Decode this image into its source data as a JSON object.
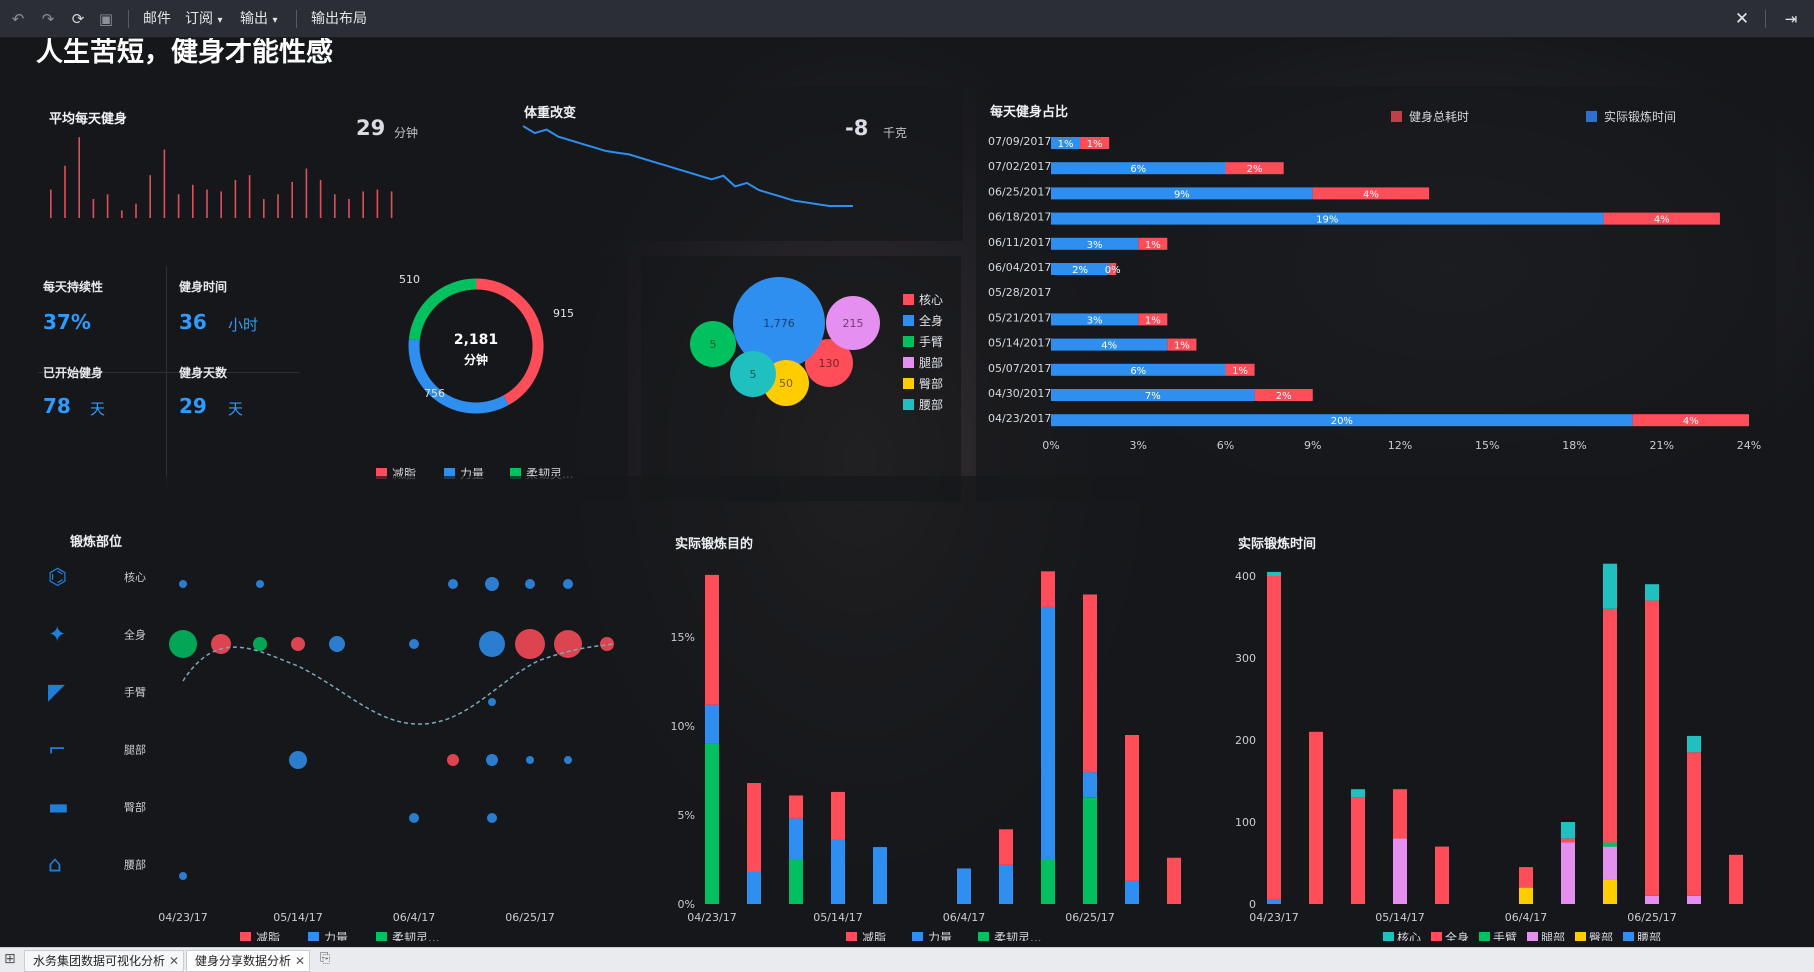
{
  "toolbar": {
    "mail": "邮件",
    "subscribe": "订阅",
    "export": "输出",
    "export_layout": "输出布局"
  },
  "title": "人生苦短，健身才能性感",
  "avg_daily": {
    "title": "平均每天健身",
    "value": "29",
    "unit": "分钟",
    "bars": [
      30,
      55,
      85,
      20,
      25,
      8,
      15,
      45,
      72,
      25,
      35,
      30,
      28,
      40,
      45,
      20,
      25,
      38,
      52,
      40,
      25,
      20,
      28,
      30,
      28
    ]
  },
  "weight": {
    "title": "体重改变",
    "value": "-8",
    "unit": "千克",
    "series": [
      100,
      96,
      98,
      94,
      92,
      90,
      88,
      86,
      85,
      84,
      82,
      80,
      78,
      76,
      74,
      72,
      70,
      72,
      66,
      68,
      64,
      62,
      60,
      58,
      57,
      56,
      55,
      55,
      55
    ]
  },
  "kpi": {
    "consistency_label": "每天持续性",
    "consistency_value": "37%",
    "time_label": "健身时间",
    "time_value": "36",
    "time_unit": "小时",
    "started_label": "已开始健身",
    "started_value": "78",
    "started_unit": "天",
    "days_label": "健身天数",
    "days_value": "29",
    "days_unit": "天"
  },
  "donut": {
    "total": "2,181",
    "unit": "分钟",
    "slices": [
      {
        "label": "915",
        "name": "减脂",
        "value": 915,
        "color": "#ff4d5a"
      },
      {
        "label": "756",
        "name": "力量",
        "value": 756,
        "color": "#2e8ff0"
      },
      {
        "label": "510",
        "name": "柔韧灵...",
        "value": 510,
        "color": "#00c060"
      }
    ]
  },
  "bubbles": {
    "items": [
      {
        "name": "核心",
        "value": 130,
        "label": "130",
        "color": "#ff4d5a"
      },
      {
        "name": "全身",
        "value": 1776,
        "label": "1,776",
        "color": "#2e8ff0"
      },
      {
        "name": "手臂",
        "value": 5,
        "label": "5",
        "color": "#00c060"
      },
      {
        "name": "腿部",
        "value": 215,
        "label": "215",
        "color": "#e58ff0"
      },
      {
        "name": "臀部",
        "value": 50,
        "label": "50",
        "color": "#ffcc00"
      },
      {
        "name": "腰部",
        "value": 5,
        "label": "5",
        "color": "#20c0c0"
      }
    ]
  },
  "daily_ratio": {
    "title": "每天健身占比",
    "legend": [
      {
        "name": "健身总耗时",
        "color": "#c0404a"
      },
      {
        "name": "实际锻炼时间",
        "color": "#2e6fd0"
      }
    ],
    "rows": [
      {
        "date": "07/09/2017",
        "blue": 1,
        "red": 1
      },
      {
        "date": "07/02/2017",
        "blue": 6,
        "red": 2
      },
      {
        "date": "06/25/2017",
        "blue": 9,
        "red": 4
      },
      {
        "date": "06/18/2017",
        "blue": 19,
        "red": 4
      },
      {
        "date": "06/11/2017",
        "blue": 3,
        "red": 1
      },
      {
        "date": "06/04/2017",
        "blue": 2,
        "red": 0
      },
      {
        "date": "05/28/2017",
        "blue": 0,
        "red": 0
      },
      {
        "date": "05/21/2017",
        "blue": 3,
        "red": 1
      },
      {
        "date": "05/14/2017",
        "blue": 4,
        "red": 1
      },
      {
        "date": "05/07/2017",
        "blue": 6,
        "red": 1
      },
      {
        "date": "04/30/2017",
        "blue": 7,
        "red": 2
      },
      {
        "date": "04/23/2017",
        "blue": 20,
        "red": 4
      }
    ],
    "ticks": [
      "0%",
      "3%",
      "6%",
      "9%",
      "12%",
      "15%",
      "18%",
      "21%",
      "24%"
    ]
  },
  "body_parts": {
    "title": "锻炼部位",
    "rows": [
      "核心",
      "全身",
      "手臂",
      "腿部",
      "臀部",
      "腰部"
    ],
    "xticks": [
      "04/23/17",
      "05/14/17",
      "06/4/17",
      "06/25/17"
    ],
    "legend": [
      {
        "name": "减脂",
        "color": "#ff4d5a"
      },
      {
        "name": "力量",
        "color": "#2e8ff0"
      },
      {
        "name": "柔韧灵...",
        "color": "#00c060"
      }
    ]
  },
  "purpose": {
    "title": "实际锻炼目的",
    "yticks": [
      "0%",
      "5%",
      "10%",
      "15%"
    ],
    "xticks": [
      "04/23/17",
      "05/14/17",
      "06/4/17",
      "06/25/17"
    ],
    "legend": [
      {
        "name": "减脂",
        "color": "#ff4d5a"
      },
      {
        "name": "力量",
        "color": "#2e8ff0"
      },
      {
        "name": "柔韧灵...",
        "color": "#00c060"
      }
    ]
  },
  "actual_time": {
    "title": "实际锻炼时间",
    "yticks": [
      "0",
      "100",
      "200",
      "300",
      "400"
    ],
    "xticks": [
      "04/23/17",
      "05/14/17",
      "06/4/17",
      "06/25/17"
    ],
    "legend": [
      {
        "name": "核心",
        "color": "#20c0c0"
      },
      {
        "name": "全身",
        "color": "#ff4d5a"
      },
      {
        "name": "手臂",
        "color": "#00c060"
      },
      {
        "name": "腿部",
        "color": "#e58ff0"
      },
      {
        "name": "臀部",
        "color": "#ffcc00"
      },
      {
        "name": "腰部",
        "color": "#2e8ff0"
      }
    ]
  },
  "chart_data": [
    {
      "type": "bar",
      "title": "每天健身占比",
      "categories": [
        "07/09/2017",
        "07/02/2017",
        "06/25/2017",
        "06/18/2017",
        "06/11/2017",
        "06/04/2017",
        "05/28/2017",
        "05/21/2017",
        "05/14/2017",
        "05/07/2017",
        "04/30/2017",
        "04/23/2017"
      ],
      "series": [
        {
          "name": "实际锻炼时间",
          "values": [
            1,
            6,
            9,
            19,
            3,
            2,
            0,
            3,
            4,
            6,
            7,
            20
          ]
        },
        {
          "name": "健身总耗时",
          "values": [
            1,
            2,
            4,
            4,
            1,
            0,
            0,
            1,
            1,
            1,
            2,
            4
          ]
        }
      ],
      "xlim": [
        0,
        24
      ]
    },
    {
      "type": "bar",
      "title": "实际锻炼目的",
      "categories": [
        "04/23/17",
        "04/30/17",
        "05/07/17",
        "05/14/17",
        "05/21/17",
        "06/04/17",
        "06/11/17",
        "06/18/17",
        "06/25/17",
        "07/02/17",
        "07/09/17"
      ],
      "series": [
        {
          "name": "柔韧灵...",
          "values": [
            9,
            0,
            2.5,
            0,
            0,
            0,
            0,
            2.5,
            6,
            0,
            0
          ]
        },
        {
          "name": "力量",
          "values": [
            2.2,
            1.8,
            2.3,
            3.6,
            3.2,
            2,
            2.2,
            14.2,
            1.4,
            1.3,
            0
          ]
        },
        {
          "name": "减脂",
          "values": [
            7.3,
            5,
            1.3,
            2.7,
            0,
            0,
            2,
            2,
            10,
            8.2,
            2.6
          ]
        }
      ],
      "ylim": [
        0,
        19
      ]
    },
    {
      "type": "bar",
      "title": "实际锻炼时间",
      "categories": [
        "04/23/17",
        "04/30/17",
        "05/07/17",
        "05/14/17",
        "05/21/17",
        "06/04/17",
        "06/11/17",
        "06/18/17",
        "06/25/17",
        "07/02/17",
        "07/09/17"
      ],
      "series": [
        {
          "name": "腰部",
          "values": [
            5,
            0,
            0,
            0,
            0,
            0,
            0,
            0,
            0,
            0,
            0
          ]
        },
        {
          "name": "臀部",
          "values": [
            0,
            0,
            0,
            0,
            0,
            20,
            0,
            30,
            0,
            0,
            0
          ]
        },
        {
          "name": "腿部",
          "values": [
            0,
            0,
            0,
            80,
            0,
            0,
            75,
            40,
            10,
            10,
            0
          ]
        },
        {
          "name": "手臂",
          "values": [
            0,
            0,
            0,
            0,
            0,
            0,
            0,
            5,
            0,
            0,
            0
          ]
        },
        {
          "name": "全身",
          "values": [
            395,
            210,
            130,
            60,
            70,
            25,
            5,
            285,
            360,
            175,
            60
          ]
        },
        {
          "name": "核心",
          "values": [
            5,
            0,
            10,
            0,
            0,
            0,
            20,
            55,
            20,
            20,
            0
          ]
        }
      ],
      "ylim": [
        0,
        420
      ]
    }
  ]
}
